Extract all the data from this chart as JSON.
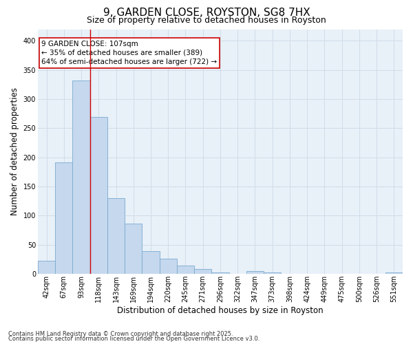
{
  "title1": "9, GARDEN CLOSE, ROYSTON, SG8 7HX",
  "title2": "Size of property relative to detached houses in Royston",
  "xlabel": "Distribution of detached houses by size in Royston",
  "ylabel": "Number of detached properties",
  "categories": [
    "42sqm",
    "67sqm",
    "93sqm",
    "118sqm",
    "143sqm",
    "169sqm",
    "194sqm",
    "220sqm",
    "245sqm",
    "271sqm",
    "296sqm",
    "322sqm",
    "347sqm",
    "373sqm",
    "398sqm",
    "424sqm",
    "449sqm",
    "475sqm",
    "500sqm",
    "526sqm",
    "551sqm"
  ],
  "values": [
    23,
    192,
    332,
    270,
    130,
    87,
    39,
    26,
    14,
    9,
    3,
    0,
    5,
    3,
    0,
    0,
    0,
    0,
    0,
    0,
    2
  ],
  "bar_color": "#c5d8ee",
  "bar_edge_color": "#7aaacf",
  "grid_color": "#d0dde8",
  "background_color": "#ffffff",
  "axes_bg_color": "#e8f0f8",
  "vline_x_idx": 2.5,
  "vline_color": "#cc0000",
  "annotation_text": "9 GARDEN CLOSE: 107sqm\n← 35% of detached houses are smaller (389)\n64% of semi-detached houses are larger (722) →",
  "annotation_box_color": "#ffffff",
  "annotation_box_edge": "#cc0000",
  "footer1": "Contains HM Land Registry data © Crown copyright and database right 2025.",
  "footer2": "Contains public sector information licensed under the Open Government Licence v3.0.",
  "ylim": [
    0,
    420
  ],
  "yticks": [
    0,
    50,
    100,
    150,
    200,
    250,
    300,
    350,
    400
  ],
  "title1_fontsize": 11,
  "title2_fontsize": 9,
  "xlabel_fontsize": 8.5,
  "ylabel_fontsize": 8.5,
  "tick_fontsize": 7,
  "footer_fontsize": 6,
  "ann_fontsize": 7.5
}
